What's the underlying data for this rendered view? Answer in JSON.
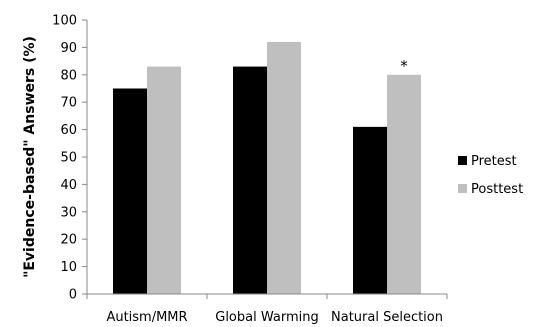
{
  "chart_data": {
    "type": "bar",
    "title": "",
    "xlabel": "",
    "ylabel": "\"Evidence-based\" Answers (%)",
    "categories": [
      "Autism/MMR",
      "Global Warming",
      "Natural Selection"
    ],
    "series": [
      {
        "name": "Pretest",
        "values": [
          75,
          83,
          61
        ],
        "color": "#000000"
      },
      {
        "name": "Posttest",
        "values": [
          83,
          92,
          80
        ],
        "color": "#bfbfbf"
      }
    ],
    "ylim": [
      0,
      100
    ],
    "yticks": [
      0,
      10,
      20,
      30,
      40,
      50,
      60,
      70,
      80,
      90,
      100
    ],
    "grid": false,
    "legend": "right",
    "annotations": [
      {
        "text": "*",
        "category": "Natural Selection",
        "series": "Posttest"
      }
    ]
  }
}
